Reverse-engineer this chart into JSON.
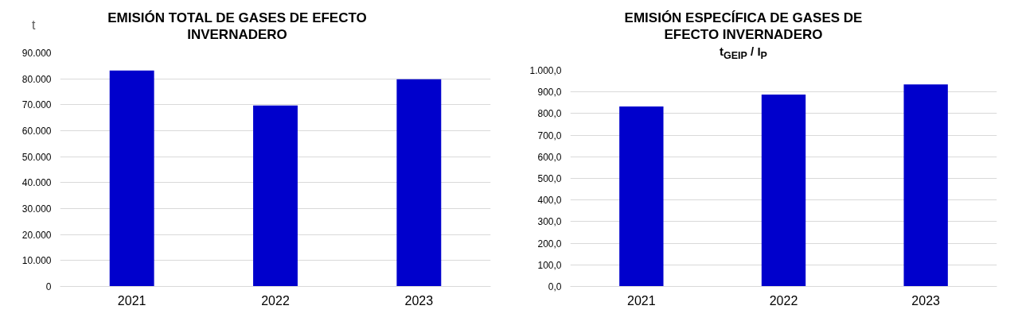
{
  "chart_data": [
    {
      "type": "bar",
      "title": "EMISIÓN TOTAL DE GASES DE EFECTO INVERNADERO",
      "ylabel": "t",
      "categories": [
        "2021",
        "2022",
        "2023"
      ],
      "values": [
        83200,
        69700,
        79800
      ],
      "color": "#0000cc",
      "ylim": [
        0,
        90000
      ],
      "yticks": [
        0,
        {
          "value": 10000,
          "label": "10.000"
        },
        {
          "value": 20000,
          "label": "20.000"
        },
        {
          "value": 30000,
          "label": "30.000"
        },
        {
          "value": 40000,
          "label": "40.000"
        },
        {
          "value": 50000,
          "label": "50.000"
        },
        {
          "value": 60000,
          "label": "60.000"
        },
        {
          "value": 70000,
          "label": "70.000"
        },
        {
          "value": 80000,
          "label": "80.000"
        },
        {
          "value": 90000,
          "label": "90.000"
        }
      ],
      "grid": "y"
    },
    {
      "type": "bar",
      "title": "EMISIÓN ESPECÍFICA DE GASES DE EFECTO INVERNADERO",
      "subtitle": "t$_{GEIP}$ / I$_{P}$",
      "categories": [
        "2021",
        "2022",
        "2023"
      ],
      "values": [
        833,
        888,
        935
      ],
      "color": "#0000cc",
      "ylim": [
        0,
        1000
      ],
      "yticks": [
        {
          "value": 0,
          "label": "0,0"
        },
        {
          "value": 100,
          "label": "100,0"
        },
        {
          "value": 200,
          "label": "200,0"
        },
        {
          "value": 300,
          "label": "300,0"
        },
        {
          "value": 400,
          "label": "400,0"
        },
        {
          "value": 500,
          "label": "500,0"
        },
        {
          "value": 600,
          "label": "600,0"
        },
        {
          "value": 700,
          "label": "700,0"
        },
        {
          "value": 800,
          "label": "800,0"
        },
        {
          "value": 900,
          "label": "900,0"
        },
        {
          "value": 1000,
          "label": "1.000,0"
        }
      ],
      "grid": "y"
    }
  ]
}
